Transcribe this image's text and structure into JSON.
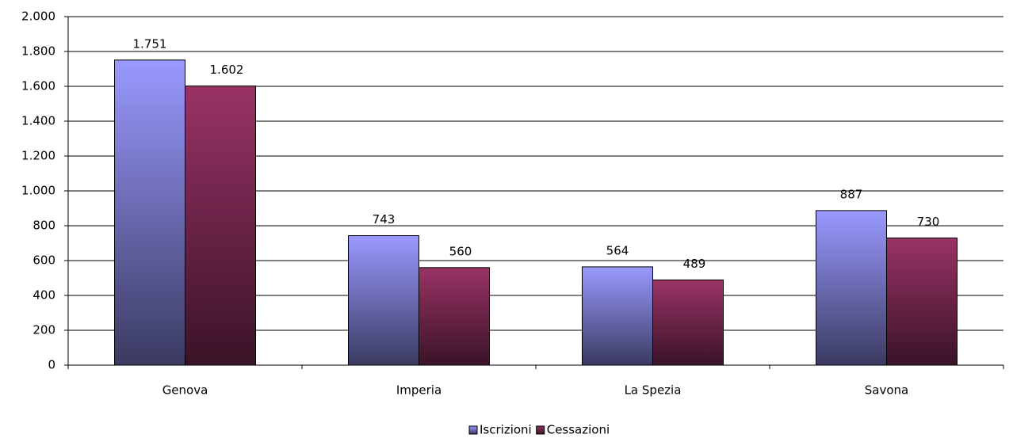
{
  "chart_data": {
    "type": "bar",
    "categories": [
      "Genova",
      "Imperia",
      "La Spezia",
      "Savona"
    ],
    "series": [
      {
        "name": "Iscrizioni",
        "color": "#9999ff",
        "values": [
          1751,
          743,
          564,
          887
        ],
        "value_labels": [
          "1.751",
          "743",
          "564",
          "887"
        ]
      },
      {
        "name": "Cessazioni",
        "color": "#993366",
        "values": [
          1602,
          560,
          489,
          730
        ],
        "value_labels": [
          "1.602",
          "560",
          "489",
          "730"
        ]
      }
    ],
    "ylim": [
      0,
      2000
    ],
    "yticks": [
      0,
      200,
      400,
      600,
      800,
      {
        "value": 1000,
        "label": "1.000"
      },
      {
        "value": 1200,
        "label": "1.200"
      },
      {
        "value": 1400,
        "label": "1.400"
      },
      {
        "value": 1600,
        "label": "1.600"
      },
      {
        "value": 1800,
        "label": "1.800"
      },
      {
        "value": 2000,
        "label": "2.000"
      }
    ],
    "grid": true,
    "legend": "bottom"
  }
}
